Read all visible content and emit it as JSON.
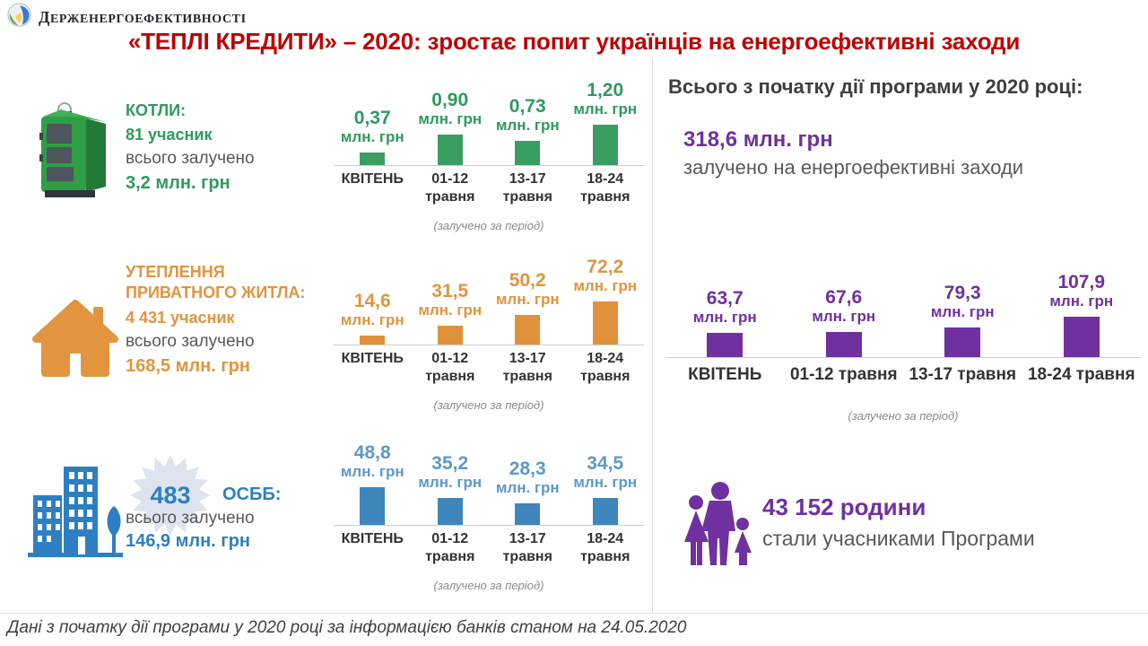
{
  "header": {
    "logo_text": "ДЕРЖЕНЕРГОЕФЕКТИВНОСТІ",
    "title": "«ТЕПЛІ КРЕДИТИ» – 2020: зростає попит українців на енергоефективні заходи"
  },
  "colors": {
    "green": "#2f9a5e",
    "orange": "#e2943f",
    "blue": "#2d7fc1",
    "blue_light": "#5b9ac8",
    "purple": "#7030a0",
    "title_red": "#c00000",
    "gray_text": "#595959",
    "divider": "#d9d9d9"
  },
  "icons": {
    "logo": "sphere-logo-icon",
    "boilers": "boiler-icon",
    "insulation": "house-icon",
    "osbb": "buildings-icon",
    "families": "family-icon",
    "badge": "starburst-badge"
  },
  "sections": {
    "boilers": {
      "title": "КОТЛИ:",
      "participants": "81 учасник",
      "raised_label": "всього залучено",
      "raised_value": "3,2 млн. грн"
    },
    "insulation": {
      "title_line1": "УТЕПЛЕННЯ",
      "title_line2": "ПРИВАТНОГО ЖИТЛА:",
      "participants": "4 431 учасник",
      "raised_label": "всього залучено",
      "raised_value": "168,5 млн. грн"
    },
    "osbb": {
      "badge": "483",
      "title": "ОСББ:",
      "raised_label": "всього залучено",
      "raised_value": "146,9 млн. грн"
    }
  },
  "totals": {
    "heading": "Всього з початку дії програми у 2020 році:",
    "amount": "318,6 млн. грн",
    "amount_caption": "залучено на енергоефективні заходи",
    "families_value": "43 152 родини",
    "families_caption": "стали учасниками Програми"
  },
  "footer": {
    "note": "Дані з початку дії програми у 2020 році за інформацією банків станом на 24.05.2020"
  },
  "chart_data": [
    {
      "type": "bar",
      "title": "КОТЛИ (залучено за період)",
      "unit": "млн. грн",
      "color": "#3a9e63",
      "label_color": "#2f9a5e",
      "categories": [
        "КВІТЕНЬ",
        "01-12 травня",
        "13-17 травня",
        "18-24 травня"
      ],
      "values": [
        0.37,
        0.9,
        0.73,
        1.2
      ],
      "value_labels": [
        "0,37",
        "0,90",
        "0,73",
        "1,20"
      ],
      "caption": "(залучено за період)",
      "ylim": [
        0,
        1.2
      ],
      "max_bar_height": 45,
      "two_line_categories": true
    },
    {
      "type": "bar",
      "title": "УТЕПЛЕННЯ ПРИВАТНОГО ЖИТЛА (залучено за період)",
      "unit": "млн. грн",
      "color": "#e0913c",
      "label_color": "#e2943f",
      "categories": [
        "КВІТЕНЬ",
        "01-12 травня",
        "13-17 травня",
        "18-24 травня"
      ],
      "values": [
        14.6,
        31.5,
        50.2,
        72.2
      ],
      "value_labels": [
        "14,6",
        "31,5",
        "50,2",
        "72,2"
      ],
      "caption": "(залучено за період)",
      "ylim": [
        0,
        72.2
      ],
      "max_bar_height": 48,
      "two_line_categories": true
    },
    {
      "type": "bar",
      "title": "ОСББ (залучено за період)",
      "unit": "млн. грн",
      "color": "#3f86bd",
      "label_color": "#5b9ac8",
      "categories": [
        "КВІТЕНЬ",
        "01-12 травня",
        "13-17 травня",
        "18-24 травня"
      ],
      "values": [
        48.8,
        35.2,
        28.3,
        34.5
      ],
      "value_labels": [
        "48,8",
        "35,2",
        "28,3",
        "34,5"
      ],
      "caption": "(залучено за період)",
      "ylim": [
        0,
        48.8
      ],
      "max_bar_height": 42,
      "two_line_categories": true
    },
    {
      "type": "bar",
      "title": "Всього залучено за програмою (залучено за період)",
      "unit": "млн. грн",
      "color": "#7030a0",
      "label_color": "#7030a0",
      "categories": [
        "КВІТЕНЬ",
        "01-12 травня",
        "13-17 травня",
        "18-24 травня"
      ],
      "values": [
        63.7,
        67.6,
        79.3,
        107.9
      ],
      "value_labels": [
        "63,7",
        "67,6",
        "79,3",
        "107,9"
      ],
      "caption": "(залучено за період)",
      "ylim": [
        0,
        107.9
      ],
      "max_bar_height": 45,
      "two_line_categories": false
    }
  ]
}
